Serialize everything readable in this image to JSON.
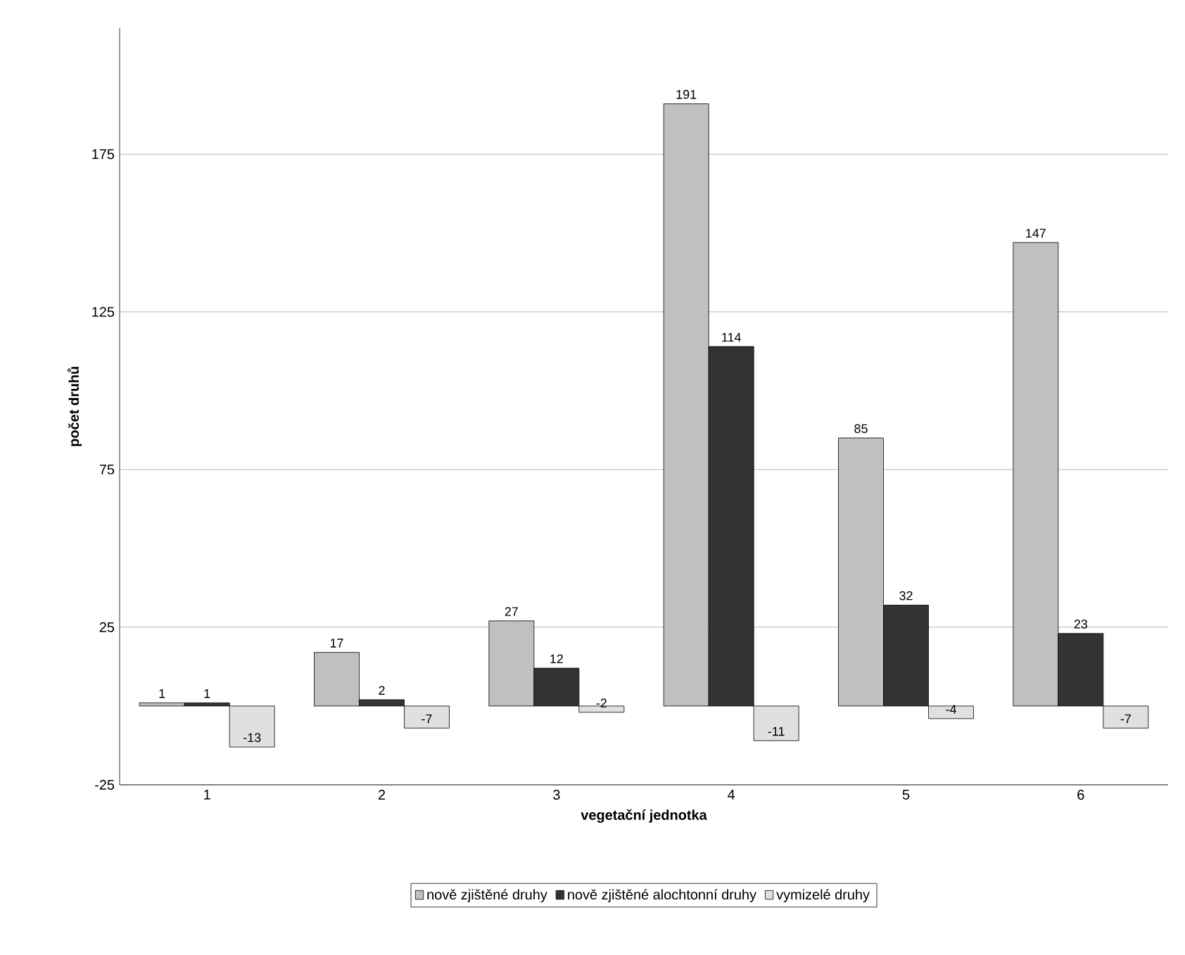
{
  "chart_data": {
    "type": "bar",
    "xlabel": "vegetační jednotka",
    "ylabel": "počet druhů",
    "categories": [
      "1",
      "2",
      "3",
      "4",
      "5",
      "6"
    ],
    "series": [
      {
        "name": "nově zjištěné druhy",
        "color": "#c0c0c0",
        "values": [
          1,
          17,
          27,
          191,
          85,
          147
        ]
      },
      {
        "name": "nově zjištěné alochtonní druhy",
        "color": "#333333",
        "values": [
          1,
          2,
          12,
          114,
          32,
          23
        ]
      },
      {
        "name": "vymizelé druhy",
        "color": "#e0e0e0",
        "values": [
          -13,
          -7,
          -2,
          -11,
          -4,
          -7
        ]
      }
    ],
    "ylim": [
      -25,
      215
    ],
    "yticks": [
      -25,
      25,
      75,
      125,
      175
    ],
    "grid": "y",
    "legend": "bottom",
    "data_labels": true
  }
}
